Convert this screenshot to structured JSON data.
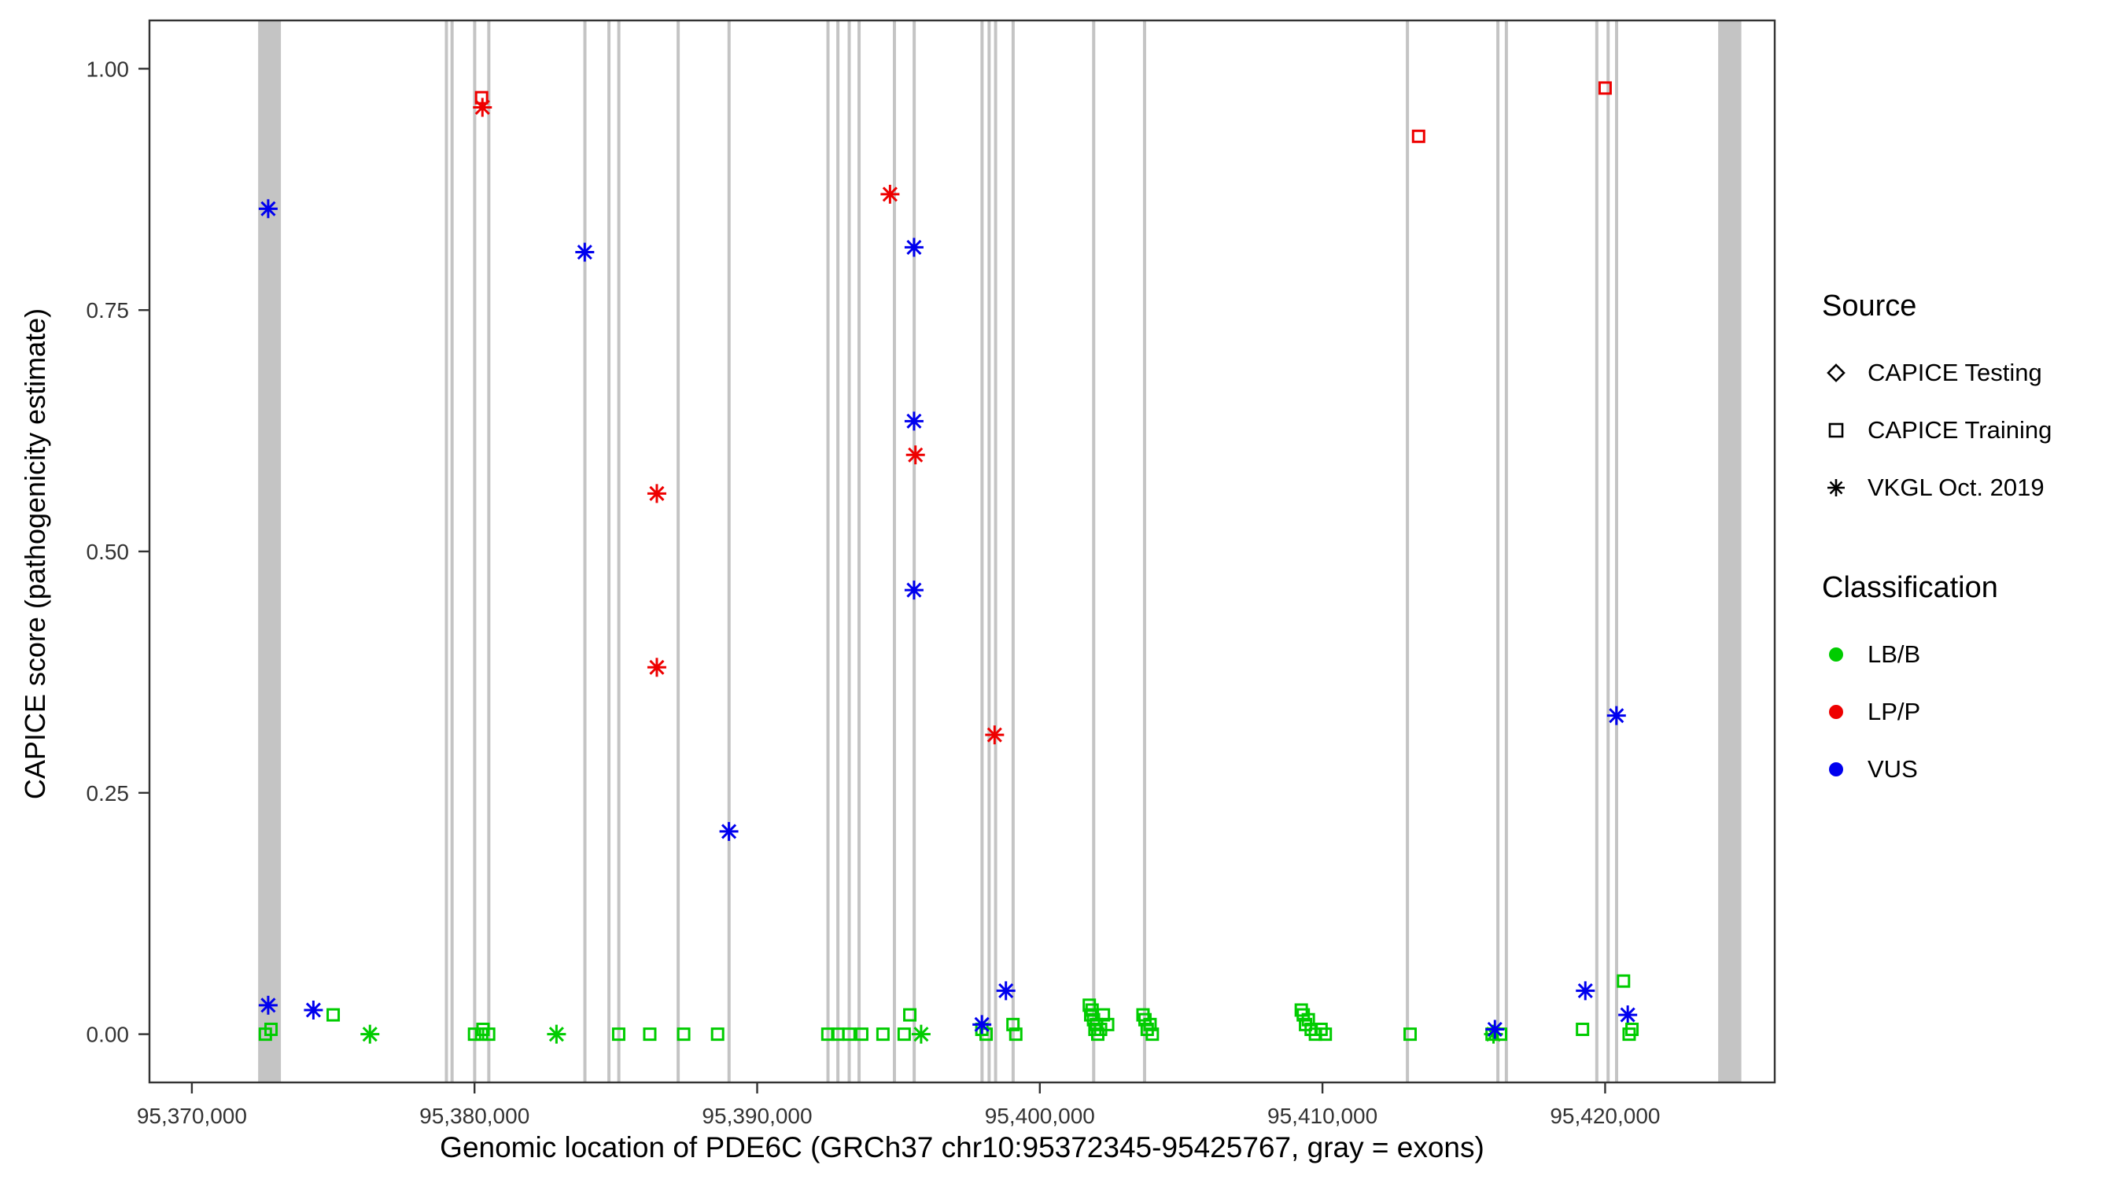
{
  "figure": {
    "background": "#ffffff",
    "axis_color": "#333333",
    "tick_label_color": "#333333",
    "exon_color": "#c4c4c4",
    "colors": {
      "LB/B": "#00cc00",
      "LP/P": "#ee0000",
      "VUS": "#0000ee"
    },
    "legend": {
      "source": {
        "title": "Source",
        "items": [
          {
            "label": "CAPICE Testing",
            "marker": "diamond"
          },
          {
            "label": "CAPICE Training",
            "marker": "square"
          },
          {
            "label": "VKGL Oct. 2019",
            "marker": "asterisk"
          }
        ]
      },
      "classification": {
        "title": "Classification",
        "items": [
          {
            "label": "LB/B",
            "color": "#00cc00"
          },
          {
            "label": "LP/P",
            "color": "#ee0000"
          },
          {
            "label": "VUS",
            "color": "#0000ee"
          }
        ]
      }
    }
  },
  "chart_data": {
    "type": "scatter",
    "title": "",
    "xlabel": "Genomic location of PDE6C (GRCh37 chr10:95372345-95425767, gray = exons)",
    "ylabel": "CAPICE score (pathogenicity estimate)",
    "xlim": [
      95368500,
      95426000
    ],
    "ylim": [
      -0.05,
      1.05
    ],
    "grid": false,
    "legend_position": "right",
    "x_ticks": {
      "values": [
        95370000,
        95380000,
        95390000,
        95400000,
        95410000,
        95420000
      ],
      "labels": [
        "95,370,000",
        "95,380,000",
        "95,390,000",
        "95,400,000",
        "95,410,000",
        "95,420,000"
      ]
    },
    "y_ticks": {
      "values": [
        0,
        0.25,
        0.5,
        0.75,
        1
      ],
      "labels": [
        "0.00",
        "0.25",
        "0.50",
        "0.75",
        "1.00"
      ]
    },
    "marker_by_source": {
      "training": "square",
      "testing": "diamond",
      "vkgl": "asterisk"
    },
    "exons_note": "gray vertical bands are PDE6C exons",
    "exons": [
      [
        95372345,
        95373150
      ],
      [
        95378950,
        95379060
      ],
      [
        95379150,
        95379260
      ],
      [
        95379950,
        95380060
      ],
      [
        95380450,
        95380560
      ],
      [
        95383850,
        95383960
      ],
      [
        95384700,
        95384810
      ],
      [
        95385050,
        95385160
      ],
      [
        95387150,
        95387260
      ],
      [
        95388950,
        95389060
      ],
      [
        95392450,
        95392560
      ],
      [
        95392800,
        95392910
      ],
      [
        95393200,
        95393310
      ],
      [
        95393550,
        95393660
      ],
      [
        95394800,
        95394910
      ],
      [
        95395500,
        95395610
      ],
      [
        95397900,
        95398010
      ],
      [
        95398150,
        95398260
      ],
      [
        95398380,
        95398490
      ],
      [
        95399000,
        95399110
      ],
      [
        95401850,
        95401960
      ],
      [
        95403650,
        95403760
      ],
      [
        95412950,
        95413060
      ],
      [
        95416150,
        95416260
      ],
      [
        95416450,
        95416560
      ],
      [
        95419650,
        95419760
      ],
      [
        95420050,
        95420160
      ],
      [
        95420350,
        95420460
      ],
      [
        95424000,
        95424820
      ]
    ],
    "points": [
      {
        "pos": 95372600,
        "score": 0.0,
        "classification": "LB/B",
        "source": "training"
      },
      {
        "pos": 95372800,
        "score": 0.005,
        "classification": "LB/B",
        "source": "training"
      },
      {
        "pos": 95372700,
        "score": 0.855,
        "classification": "VUS",
        "source": "vkgl"
      },
      {
        "pos": 95372700,
        "score": 0.03,
        "classification": "VUS",
        "source": "vkgl"
      },
      {
        "pos": 95374300,
        "score": 0.025,
        "classification": "VUS",
        "source": "vkgl"
      },
      {
        "pos": 95375000,
        "score": 0.02,
        "classification": "LB/B",
        "source": "training"
      },
      {
        "pos": 95376300,
        "score": 0.0,
        "classification": "LB/B",
        "source": "vkgl"
      },
      {
        "pos": 95380000,
        "score": 0.0,
        "classification": "LB/B",
        "source": "training"
      },
      {
        "pos": 95380250,
        "score": 0.0,
        "classification": "LB/B",
        "source": "training"
      },
      {
        "pos": 95380300,
        "score": 0.005,
        "classification": "LB/B",
        "source": "training"
      },
      {
        "pos": 95380500,
        "score": 0.0,
        "classification": "LB/B",
        "source": "training"
      },
      {
        "pos": 95380250,
        "score": 0.97,
        "classification": "LP/P",
        "source": "training"
      },
      {
        "pos": 95380280,
        "score": 0.96,
        "classification": "LP/P",
        "source": "vkgl"
      },
      {
        "pos": 95382900,
        "score": 0.0,
        "classification": "LB/B",
        "source": "vkgl"
      },
      {
        "pos": 95383900,
        "score": 0.81,
        "classification": "VUS",
        "source": "vkgl"
      },
      {
        "pos": 95385100,
        "score": 0.0,
        "classification": "LB/B",
        "source": "training"
      },
      {
        "pos": 95386200,
        "score": 0.0,
        "classification": "LB/B",
        "source": "training"
      },
      {
        "pos": 95386450,
        "score": 0.56,
        "classification": "LP/P",
        "source": "vkgl"
      },
      {
        "pos": 95386450,
        "score": 0.38,
        "classification": "LP/P",
        "source": "vkgl"
      },
      {
        "pos": 95387400,
        "score": 0.0,
        "classification": "LB/B",
        "source": "training"
      },
      {
        "pos": 95388600,
        "score": 0.0,
        "classification": "LB/B",
        "source": "training"
      },
      {
        "pos": 95389000,
        "score": 0.21,
        "classification": "VUS",
        "source": "vkgl"
      },
      {
        "pos": 95392500,
        "score": 0.0,
        "classification": "LB/B",
        "source": "training"
      },
      {
        "pos": 95392850,
        "score": 0.0,
        "classification": "LB/B",
        "source": "training"
      },
      {
        "pos": 95393250,
        "score": 0.0,
        "classification": "LB/B",
        "source": "training"
      },
      {
        "pos": 95393700,
        "score": 0.0,
        "classification": "LB/B",
        "source": "training"
      },
      {
        "pos": 95394450,
        "score": 0.0,
        "classification": "LB/B",
        "source": "training"
      },
      {
        "pos": 95394700,
        "score": 0.87,
        "classification": "LP/P",
        "source": "vkgl"
      },
      {
        "pos": 95395200,
        "score": 0.0,
        "classification": "LB/B",
        "source": "training"
      },
      {
        "pos": 95395400,
        "score": 0.02,
        "classification": "LB/B",
        "source": "training"
      },
      {
        "pos": 95395800,
        "score": 0.0,
        "classification": "LB/B",
        "source": "vkgl"
      },
      {
        "pos": 95395550,
        "score": 0.815,
        "classification": "VUS",
        "source": "vkgl"
      },
      {
        "pos": 95395550,
        "score": 0.635,
        "classification": "VUS",
        "source": "vkgl"
      },
      {
        "pos": 95395600,
        "score": 0.6,
        "classification": "LP/P",
        "source": "vkgl"
      },
      {
        "pos": 95395550,
        "score": 0.46,
        "classification": "VUS",
        "source": "vkgl"
      },
      {
        "pos": 95397950,
        "score": 0.005,
        "classification": "LB/B",
        "source": "training"
      },
      {
        "pos": 95398100,
        "score": 0.0,
        "classification": "LB/B",
        "source": "training"
      },
      {
        "pos": 95397950,
        "score": 0.01,
        "classification": "VUS",
        "source": "vkgl"
      },
      {
        "pos": 95398400,
        "score": 0.31,
        "classification": "LP/P",
        "source": "vkgl"
      },
      {
        "pos": 95398800,
        "score": 0.045,
        "classification": "VUS",
        "source": "vkgl"
      },
      {
        "pos": 95399050,
        "score": 0.01,
        "classification": "LB/B",
        "source": "training"
      },
      {
        "pos": 95399150,
        "score": 0.0,
        "classification": "LB/B",
        "source": "training"
      },
      {
        "pos": 95401750,
        "score": 0.03,
        "classification": "LB/B",
        "source": "training"
      },
      {
        "pos": 95401800,
        "score": 0.02,
        "classification": "LB/B",
        "source": "training"
      },
      {
        "pos": 95401850,
        "score": 0.025,
        "classification": "LB/B",
        "source": "training"
      },
      {
        "pos": 95401900,
        "score": 0.015,
        "classification": "LB/B",
        "source": "training"
      },
      {
        "pos": 95401950,
        "score": 0.005,
        "classification": "LB/B",
        "source": "training"
      },
      {
        "pos": 95402000,
        "score": 0.01,
        "classification": "LB/B",
        "source": "training"
      },
      {
        "pos": 95402050,
        "score": 0.0,
        "classification": "LB/B",
        "source": "training"
      },
      {
        "pos": 95402150,
        "score": 0.005,
        "classification": "LB/B",
        "source": "training"
      },
      {
        "pos": 95402250,
        "score": 0.02,
        "classification": "LB/B",
        "source": "training"
      },
      {
        "pos": 95402400,
        "score": 0.01,
        "classification": "LB/B",
        "source": "training"
      },
      {
        "pos": 95403650,
        "score": 0.02,
        "classification": "LB/B",
        "source": "training"
      },
      {
        "pos": 95403720,
        "score": 0.015,
        "classification": "LB/B",
        "source": "training"
      },
      {
        "pos": 95403800,
        "score": 0.005,
        "classification": "LB/B",
        "source": "training"
      },
      {
        "pos": 95403900,
        "score": 0.01,
        "classification": "LB/B",
        "source": "training"
      },
      {
        "pos": 95403980,
        "score": 0.0,
        "classification": "LB/B",
        "source": "training"
      },
      {
        "pos": 95409250,
        "score": 0.025,
        "classification": "LB/B",
        "source": "training"
      },
      {
        "pos": 95409320,
        "score": 0.02,
        "classification": "LB/B",
        "source": "training"
      },
      {
        "pos": 95409400,
        "score": 0.01,
        "classification": "LB/B",
        "source": "training"
      },
      {
        "pos": 95409500,
        "score": 0.015,
        "classification": "LB/B",
        "source": "training"
      },
      {
        "pos": 95409600,
        "score": 0.005,
        "classification": "LB/B",
        "source": "training"
      },
      {
        "pos": 95409750,
        "score": 0.0,
        "classification": "LB/B",
        "source": "training"
      },
      {
        "pos": 95409950,
        "score": 0.005,
        "classification": "LB/B",
        "source": "training"
      },
      {
        "pos": 95410100,
        "score": 0.0,
        "classification": "LB/B",
        "source": "training"
      },
      {
        "pos": 95413100,
        "score": 0.0,
        "classification": "LB/B",
        "source": "training"
      },
      {
        "pos": 95413400,
        "score": 0.93,
        "classification": "LP/P",
        "source": "training"
      },
      {
        "pos": 95416000,
        "score": 0.0,
        "classification": "LB/B",
        "source": "training"
      },
      {
        "pos": 95416050,
        "score": 0.0,
        "classification": "LB/B",
        "source": "vkgl"
      },
      {
        "pos": 95416300,
        "score": 0.0,
        "classification": "LB/B",
        "source": "training"
      },
      {
        "pos": 95416100,
        "score": 0.005,
        "classification": "VUS",
        "source": "vkgl"
      },
      {
        "pos": 95419200,
        "score": 0.005,
        "classification": "LB/B",
        "source": "training"
      },
      {
        "pos": 95419300,
        "score": 0.045,
        "classification": "VUS",
        "source": "vkgl"
      },
      {
        "pos": 95420000,
        "score": 0.98,
        "classification": "LP/P",
        "source": "training"
      },
      {
        "pos": 95420400,
        "score": 0.33,
        "classification": "VUS",
        "source": "vkgl"
      },
      {
        "pos": 95420650,
        "score": 0.055,
        "classification": "LB/B",
        "source": "training"
      },
      {
        "pos": 95420800,
        "score": 0.02,
        "classification": "VUS",
        "source": "vkgl"
      },
      {
        "pos": 95420850,
        "score": 0.0,
        "classification": "LB/B",
        "source": "training"
      },
      {
        "pos": 95420950,
        "score": 0.005,
        "classification": "LB/B",
        "source": "training"
      }
    ]
  }
}
